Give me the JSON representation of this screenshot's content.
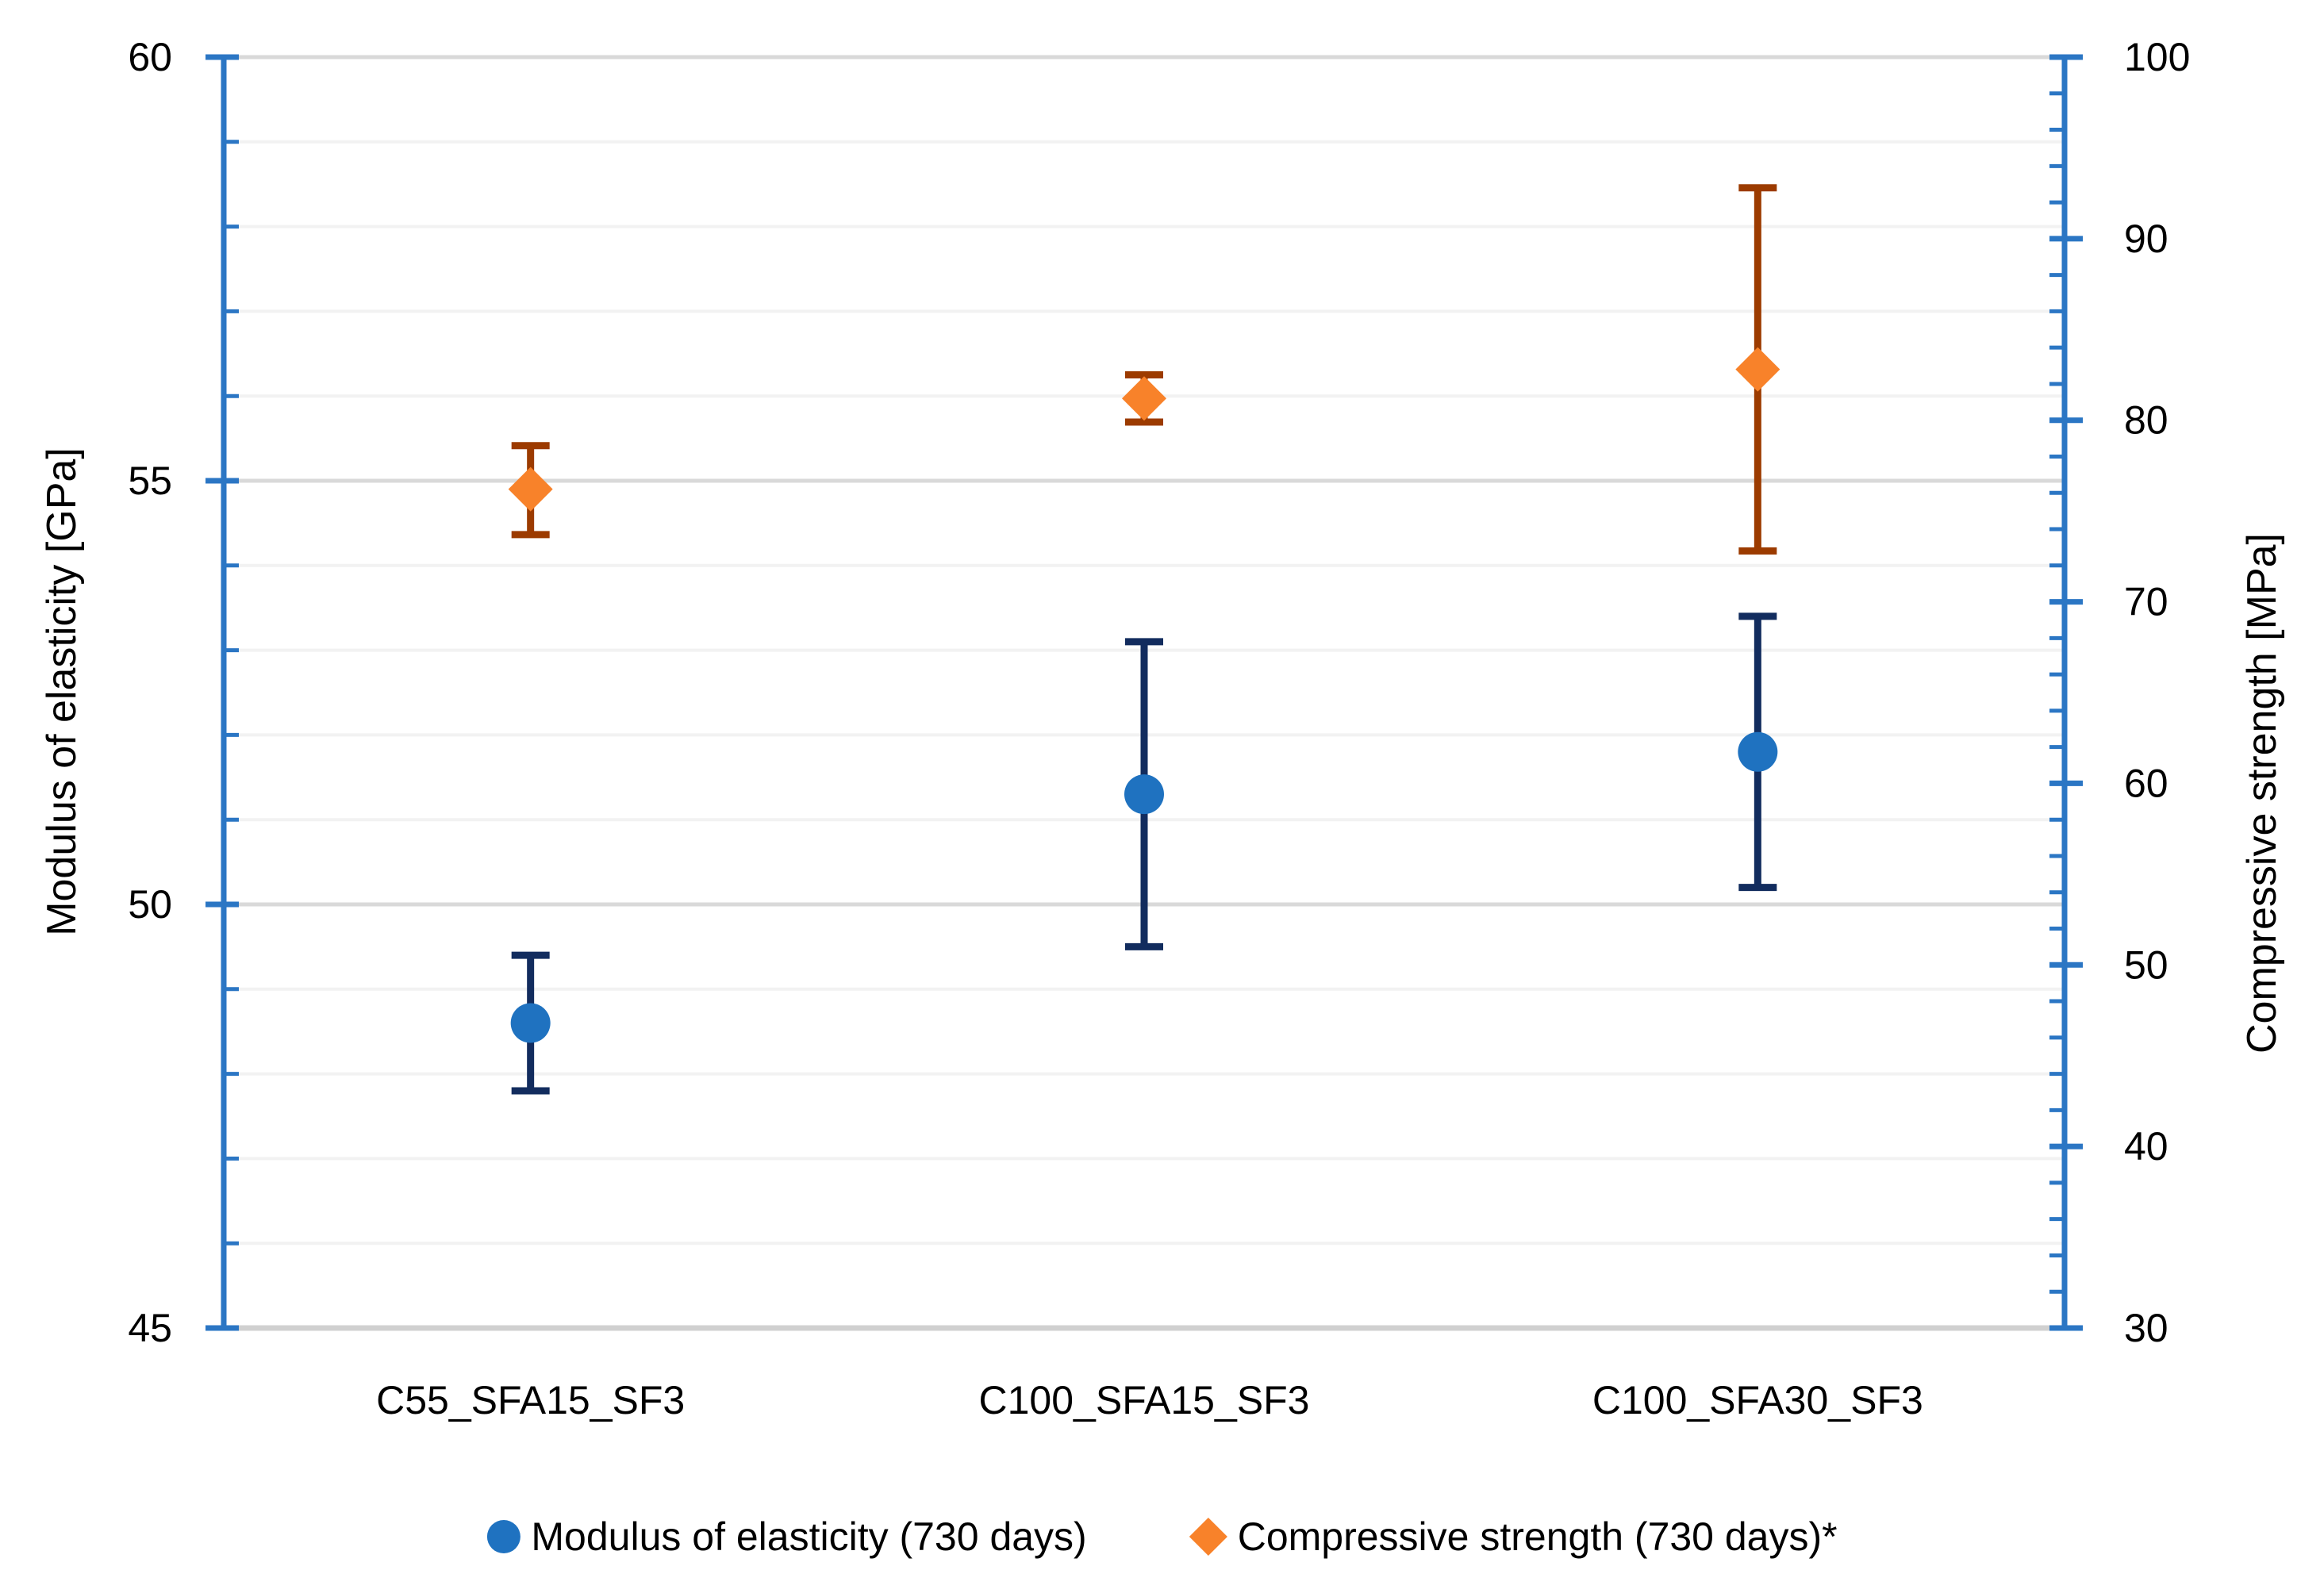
{
  "chart_data": {
    "type": "scatter",
    "title": "",
    "categories": [
      "C55_SFA15_SF3",
      "C100_SFA15_SF3",
      "C100_SFA30_SF3"
    ],
    "left_axis": {
      "label": "Modulus of elasticity [GPa]",
      "min": 45,
      "max": 60,
      "major_step": 5,
      "minor_step": 1,
      "major_ticks": [
        60,
        55,
        50,
        45
      ]
    },
    "right_axis": {
      "label": "Compressive strength [MPa]",
      "min": 30,
      "max": 100,
      "major_step": 10,
      "minor_step": 2,
      "major_ticks": [
        100,
        90,
        80,
        70,
        60,
        50,
        40,
        30
      ]
    },
    "series": [
      {
        "name": "Modulus of elasticity (730 days)",
        "axis": "left",
        "marker": "circle",
        "marker_color": "#1F72C0",
        "error_bar_color": "#122C5E",
        "values": [
          48.6,
          51.3,
          51.8
        ],
        "error_plus": [
          0.8,
          1.8,
          1.6
        ],
        "error_minus": [
          0.8,
          1.8,
          1.6
        ]
      },
      {
        "name": "Compressive strength (730 days)*",
        "axis": "right",
        "marker": "diamond",
        "marker_color": "#F8822A",
        "error_bar_color": "#9C3B00",
        "values": [
          76.2,
          81.2,
          82.8
        ],
        "error_plus": [
          2.4,
          1.3,
          10.0
        ],
        "error_minus": [
          2.5,
          1.3,
          10.0
        ]
      }
    ],
    "legend_position": "bottom",
    "grid": {
      "major_color": "#D9D9D9",
      "minor_color": "#F2F2F2",
      "vertical": false
    },
    "axis_line_color": "#2B76C4",
    "bottom_axis_color": "#D0D0D0",
    "text_color": "#000000"
  },
  "legend": {
    "items": [
      {
        "label": "Modulus of elasticity (730 days)",
        "marker": "circle",
        "color": "#1F72C0"
      },
      {
        "label": "Compressive strength (730 days)*",
        "marker": "diamond",
        "color": "#F8822A"
      }
    ]
  },
  "titles": {
    "left_axis": "Modulus of elasticity [GPa]",
    "right_axis": "Compressive strength [MPa]"
  }
}
